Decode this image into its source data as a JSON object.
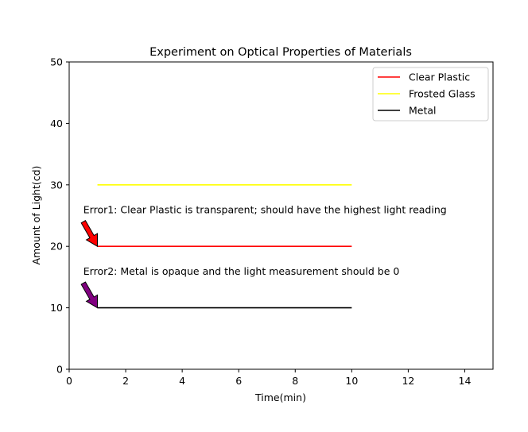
{
  "chart_data": {
    "type": "line",
    "title": "Experiment on Optical Properties of Materials",
    "xlabel": "Time(min)",
    "ylabel": "Amount of Light(cd)",
    "xlim": [
      0,
      15
    ],
    "ylim": [
      0,
      50
    ],
    "xticks": [
      0,
      2,
      4,
      6,
      8,
      10,
      12,
      14
    ],
    "yticks": [
      0,
      10,
      20,
      30,
      40,
      50
    ],
    "grid": false,
    "legend_position": "top-right",
    "series": [
      {
        "name": "Clear Plastic",
        "color": "#ff0000",
        "x": [
          1,
          10
        ],
        "y": [
          20,
          20
        ]
      },
      {
        "name": "Frosted Glass",
        "color": "#ffff00",
        "x": [
          1,
          10
        ],
        "y": [
          30,
          30
        ]
      },
      {
        "name": "Metal",
        "color": "#000000",
        "x": [
          1,
          10
        ],
        "y": [
          10,
          10
        ]
      }
    ],
    "annotations": [
      {
        "text": "Error1: Clear Plastic is transparent; should have the highest light reading",
        "text_x": 0.5,
        "text_y": 25,
        "arrow_tail": [
          0.5,
          24
        ],
        "arrow_head": [
          1,
          20
        ],
        "color": "#ff0000"
      },
      {
        "text": "Error2: Metal is opaque and the light measurement should be 0",
        "text_x": 0.5,
        "text_y": 15,
        "arrow_tail": [
          0.5,
          14
        ],
        "arrow_head": [
          1,
          10
        ],
        "color": "#800080"
      }
    ]
  }
}
